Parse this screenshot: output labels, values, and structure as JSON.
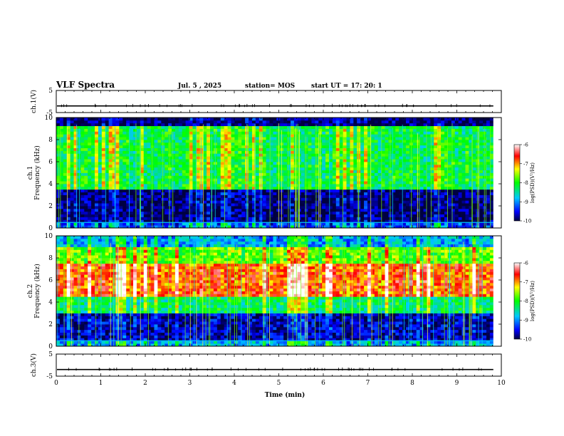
{
  "header": {
    "title": "VLF Spectra",
    "date": "Jul. 5 , 2025",
    "station": "station= MOS",
    "start": "start UT = 17: 20: 1"
  },
  "chart_data": [
    {
      "type": "line",
      "name": "ch1-waveform",
      "ylabel": "ch.1(V)",
      "ylim": [
        -5,
        5
      ],
      "yticks": [
        "5",
        "-5"
      ],
      "xlim": [
        0,
        10
      ],
      "series_level": -2
    },
    {
      "type": "heatmap",
      "name": "ch1-spectrogram",
      "ylabel": "ch.1\nFrequency (kHz)",
      "ylim": [
        0,
        10
      ],
      "yticks": [
        "0",
        "2",
        "4",
        "6",
        "8",
        "10"
      ],
      "xlim": [
        0,
        10
      ],
      "xdata_max": 9.82,
      "colorbar": {
        "label": "log(PSD)(V²/Hz)",
        "range": [
          -10,
          -6
        ],
        "ticks": [
          "-6",
          "-7",
          "-8",
          "-9",
          "-10"
        ]
      },
      "bands": [
        {
          "from": 0.0,
          "to": 0.4,
          "level": -9.3
        },
        {
          "from": 0.4,
          "to": 3.5,
          "level": -9.9
        },
        {
          "from": 3.5,
          "to": 9.2,
          "level": -8.2
        },
        {
          "from": 9.2,
          "to": 10.0,
          "level": -9.9
        }
      ]
    },
    {
      "type": "heatmap",
      "name": "ch2-spectrogram",
      "ylabel": "ch.2\nFrequency (kHz)",
      "ylim": [
        0,
        10
      ],
      "yticks": [
        "0",
        "2",
        "4",
        "6",
        "8",
        "10"
      ],
      "xlim": [
        0,
        10
      ],
      "xdata_max": 9.82,
      "colorbar": {
        "label": "log(PSD)(V²/Hz)",
        "range": [
          -10,
          -6
        ],
        "ticks": [
          "-6",
          "-7",
          "-8",
          "-9",
          "-10"
        ]
      },
      "bands": [
        {
          "from": 0.0,
          "to": 0.5,
          "level": -8.9
        },
        {
          "from": 0.5,
          "to": 3.0,
          "level": -9.7
        },
        {
          "from": 3.0,
          "to": 4.5,
          "level": -8.3
        },
        {
          "from": 4.5,
          "to": 7.5,
          "level": -6.8
        },
        {
          "from": 7.5,
          "to": 9.0,
          "level": -7.8
        },
        {
          "from": 9.0,
          "to": 10.0,
          "level": -8.9
        }
      ]
    },
    {
      "type": "line",
      "name": "ch3-waveform",
      "ylabel": "ch.3(V)",
      "ylim": [
        -5,
        5
      ],
      "yticks": [
        "5",
        "-5"
      ],
      "xlim": [
        0,
        10
      ],
      "series_level": -2,
      "xlabel": "Time (min)",
      "xticks": [
        "0",
        "1",
        "2",
        "3",
        "4",
        "5",
        "6",
        "7",
        "8",
        "9",
        "10"
      ]
    }
  ]
}
